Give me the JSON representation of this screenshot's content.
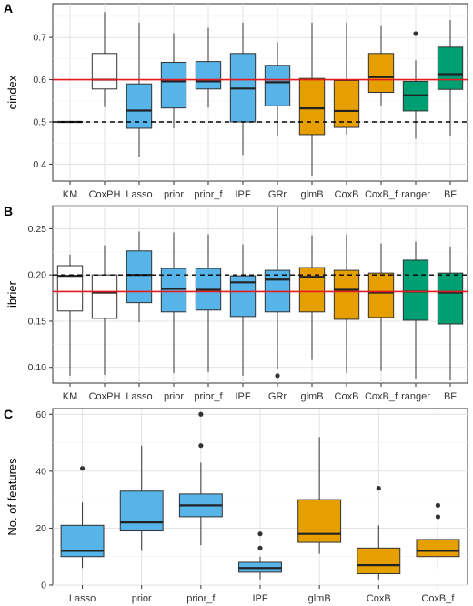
{
  "colors": {
    "white": "#ffffff",
    "blue": "#56b4e9",
    "orange": "#e69f00",
    "green": "#009e73",
    "reference_line": "#e41a1c",
    "panel_bg": "#ebebeb"
  },
  "chart_data": [
    {
      "type": "box",
      "panel": "A",
      "xlabel": "",
      "ylabel": "cindex",
      "ylim": [
        0.36,
        0.78
      ],
      "yticks": [
        0.4,
        0.5,
        0.6,
        0.7
      ],
      "ytick_labels": [
        "0.4",
        "0.5",
        "0.6",
        "0.7"
      ],
      "reference_lines": [
        {
          "y": 0.6,
          "style": "solid",
          "color": "red"
        },
        {
          "y": 0.5,
          "style": "dashed",
          "color": "black"
        }
      ],
      "categories": [
        "KM",
        "CoxPH",
        "Lasso",
        "prior",
        "prior_f",
        "IPF",
        "GRr",
        "glmB",
        "CoxB",
        "CoxB_f",
        "ranger",
        "BF"
      ],
      "category_labels": [
        "KM",
        "CoxPH",
        "Lasso",
        "prior",
        "prior_f",
        "IPF",
        "GRr",
        "glmB",
        "CoxB",
        "CoxB_f",
        "ranger",
        "BF"
      ],
      "boxes": [
        {
          "min": 0.5,
          "q1": 0.5,
          "median": 0.5,
          "q3": 0.5,
          "max": 0.5,
          "color": "white",
          "outliers": []
        },
        {
          "min": 0.535,
          "q1": 0.578,
          "median": 0.6,
          "q3": 0.662,
          "max": 0.76,
          "color": "white",
          "outliers": []
        },
        {
          "min": 0.418,
          "q1": 0.485,
          "median": 0.527,
          "q3": 0.59,
          "max": 0.735,
          "color": "blue",
          "outliers": []
        },
        {
          "min": 0.485,
          "q1": 0.533,
          "median": 0.596,
          "q3": 0.641,
          "max": 0.71,
          "color": "blue",
          "outliers": []
        },
        {
          "min": 0.534,
          "q1": 0.578,
          "median": 0.596,
          "q3": 0.643,
          "max": 0.723,
          "color": "blue",
          "outliers": []
        },
        {
          "min": 0.422,
          "q1": 0.5,
          "median": 0.579,
          "q3": 0.662,
          "max": 0.735,
          "color": "blue",
          "outliers": []
        },
        {
          "min": 0.466,
          "q1": 0.538,
          "median": 0.594,
          "q3": 0.634,
          "max": 0.689,
          "color": "blue",
          "outliers": []
        },
        {
          "min": 0.373,
          "q1": 0.47,
          "median": 0.532,
          "q3": 0.603,
          "max": 0.735,
          "color": "orange",
          "outliers": []
        },
        {
          "min": 0.47,
          "q1": 0.487,
          "median": 0.526,
          "q3": 0.598,
          "max": 0.735,
          "color": "orange",
          "outliers": []
        },
        {
          "min": 0.537,
          "q1": 0.57,
          "median": 0.606,
          "q3": 0.662,
          "max": 0.727,
          "color": "orange",
          "outliers": []
        },
        {
          "min": 0.46,
          "q1": 0.526,
          "median": 0.563,
          "q3": 0.596,
          "max": 0.646,
          "color": "green",
          "outliers": [
            0.709
          ]
        },
        {
          "min": 0.466,
          "q1": 0.577,
          "median": 0.613,
          "q3": 0.677,
          "max": 0.741,
          "color": "green",
          "outliers": []
        }
      ]
    },
    {
      "type": "box",
      "panel": "B",
      "xlabel": "",
      "ylabel": "ibrier",
      "ylim": [
        0.083,
        0.275
      ],
      "yticks": [
        0.1,
        0.15,
        0.2,
        0.25
      ],
      "ytick_labels": [
        "0.10",
        "0.15",
        "0.20",
        "0.25"
      ],
      "reference_lines": [
        {
          "y": 0.182,
          "style": "solid",
          "color": "red"
        },
        {
          "y": 0.2,
          "style": "dashed",
          "color": "black"
        }
      ],
      "categories": [
        "KM",
        "CoxPH",
        "Lasso",
        "prior",
        "prior_f",
        "IPF",
        "GRr",
        "glmB",
        "CoxB",
        "CoxB_f",
        "ranger",
        "BF"
      ],
      "category_labels": [
        "KM",
        "CoxPH",
        "Lasso",
        "prior",
        "prior_f",
        "IPF",
        "GRr",
        "glmB",
        "CoxB",
        "CoxB_f",
        "ranger",
        "BF"
      ],
      "boxes": [
        {
          "min": 0.091,
          "q1": 0.161,
          "median": 0.199,
          "q3": 0.21,
          "max": 0.222,
          "color": "white",
          "outliers": []
        },
        {
          "min": 0.092,
          "q1": 0.153,
          "median": 0.181,
          "q3": 0.2,
          "max": 0.232,
          "color": "white",
          "outliers": []
        },
        {
          "min": 0.149,
          "q1": 0.17,
          "median": 0.2,
          "q3": 0.226,
          "max": 0.247,
          "color": "blue",
          "outliers": []
        },
        {
          "min": 0.094,
          "q1": 0.16,
          "median": 0.185,
          "q3": 0.207,
          "max": 0.246,
          "color": "blue",
          "outliers": []
        },
        {
          "min": 0.095,
          "q1": 0.162,
          "median": 0.184,
          "q3": 0.207,
          "max": 0.244,
          "color": "blue",
          "outliers": []
        },
        {
          "min": 0.091,
          "q1": 0.155,
          "median": 0.192,
          "q3": 0.199,
          "max": 0.233,
          "color": "blue",
          "outliers": []
        },
        {
          "min": 0.098,
          "q1": 0.16,
          "median": 0.195,
          "q3": 0.205,
          "max": 0.274,
          "color": "blue",
          "outliers": [
            0.091
          ]
        },
        {
          "min": 0.108,
          "q1": 0.16,
          "median": 0.198,
          "q3": 0.208,
          "max": 0.243,
          "color": "orange",
          "outliers": []
        },
        {
          "min": 0.094,
          "q1": 0.152,
          "median": 0.184,
          "q3": 0.205,
          "max": 0.244,
          "color": "orange",
          "outliers": []
        },
        {
          "min": 0.096,
          "q1": 0.154,
          "median": 0.181,
          "q3": 0.202,
          "max": 0.234,
          "color": "orange",
          "outliers": []
        },
        {
          "min": 0.088,
          "q1": 0.151,
          "median": 0.182,
          "q3": 0.216,
          "max": 0.236,
          "color": "green",
          "outliers": []
        },
        {
          "min": 0.086,
          "q1": 0.147,
          "median": 0.181,
          "q3": 0.202,
          "max": 0.231,
          "color": "green",
          "outliers": []
        }
      ]
    },
    {
      "type": "box",
      "panel": "C",
      "xlabel": "",
      "ylabel": "No. of features",
      "ylim": [
        0,
        62
      ],
      "yticks": [
        0,
        20,
        40,
        60
      ],
      "ytick_labels": [
        "0",
        "20",
        "40",
        "60"
      ],
      "reference_lines": [],
      "categories": [
        "Lasso",
        "prior",
        "prior_f",
        "IPF",
        "glmB",
        "CoxB",
        "CoxB_f"
      ],
      "category_labels": [
        "Lasso",
        "prior",
        "prior_f",
        "IPF",
        "glmB",
        "CoxB",
        "CoxB_f"
      ],
      "boxes": [
        {
          "min": 6,
          "q1": 10,
          "median": 12,
          "q3": 21,
          "max": 29,
          "color": "blue",
          "outliers": [
            41
          ]
        },
        {
          "min": 12,
          "q1": 19,
          "median": 22,
          "q3": 33,
          "max": 49,
          "color": "blue",
          "outliers": []
        },
        {
          "min": 14,
          "q1": 24,
          "median": 28,
          "q3": 32,
          "max": 43,
          "color": "blue",
          "outliers": [
            49,
            60
          ]
        },
        {
          "min": 2,
          "q1": 4.5,
          "median": 6,
          "q3": 8,
          "max": 10,
          "color": "blue",
          "outliers": [
            13,
            18
          ]
        },
        {
          "min": 11,
          "q1": 15,
          "median": 18,
          "q3": 30,
          "max": 52,
          "color": "orange",
          "outliers": []
        },
        {
          "min": 2,
          "q1": 4,
          "median": 7,
          "q3": 13,
          "max": 21,
          "color": "orange",
          "outliers": [
            34
          ]
        },
        {
          "min": 6,
          "q1": 10,
          "median": 12,
          "q3": 16,
          "max": 22,
          "color": "orange",
          "outliers": [
            24,
            28
          ]
        }
      ]
    }
  ]
}
